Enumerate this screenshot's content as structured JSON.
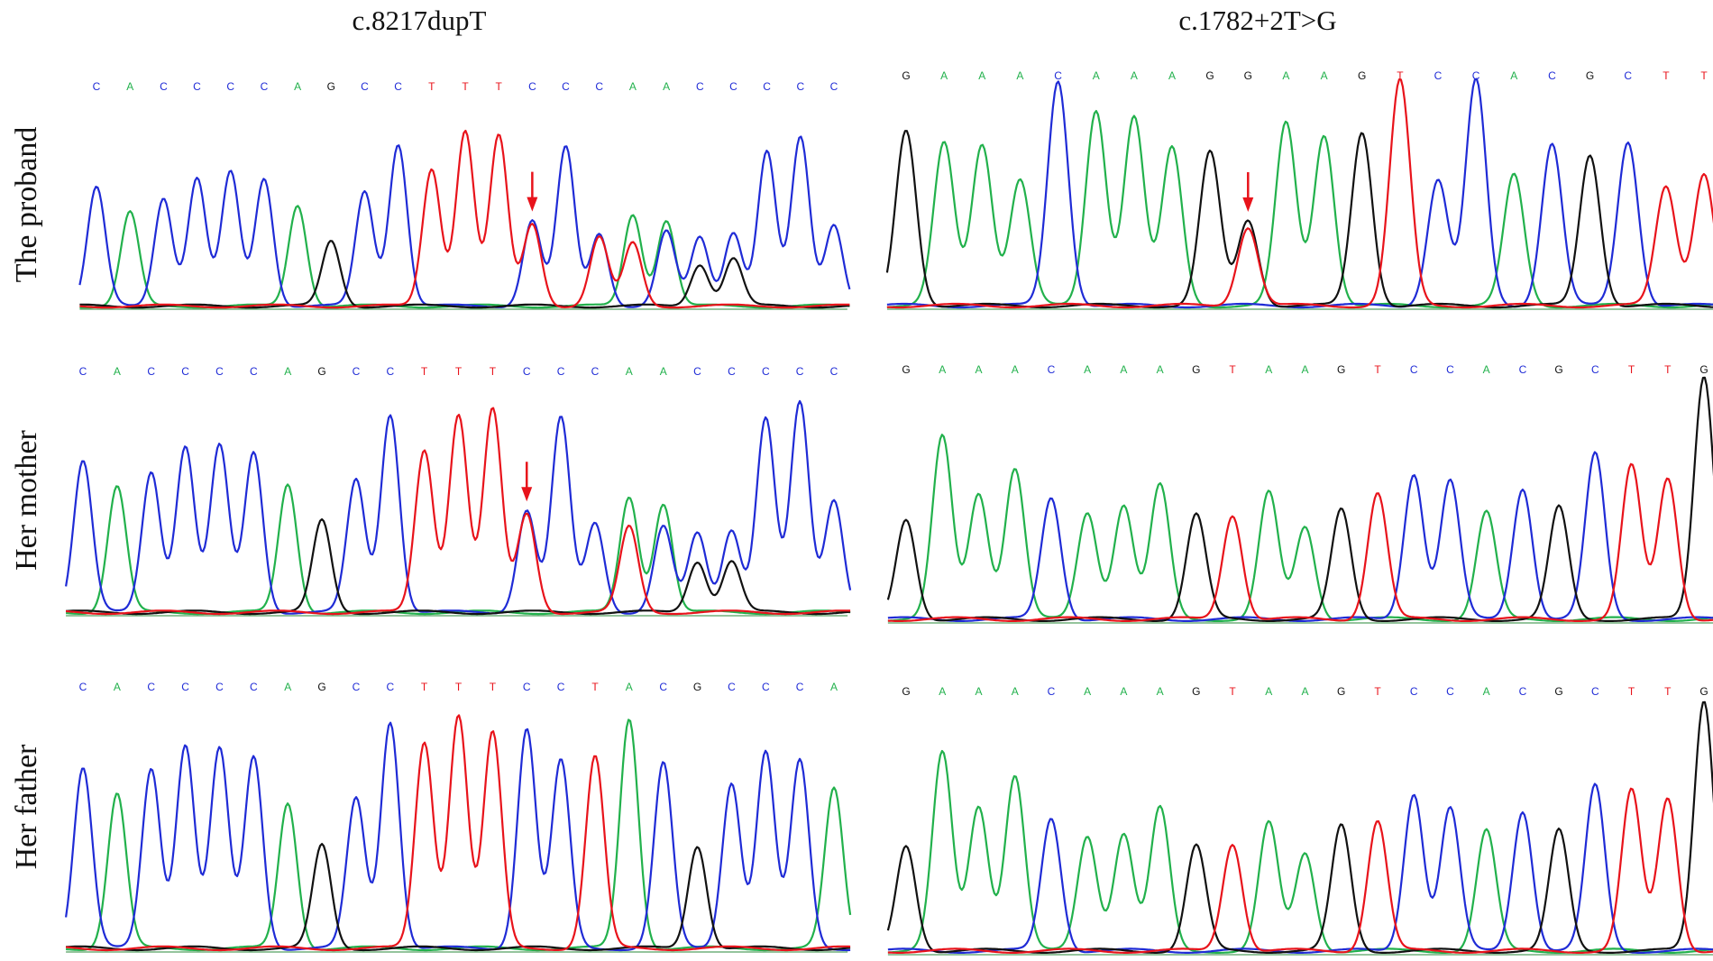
{
  "colors": {
    "A": "#22b14c",
    "C": "#1f2bd6",
    "G": "#111111",
    "T": "#e8131b",
    "arrow": "#e8131b"
  },
  "chart_data": {
    "type": "line",
    "columns": [
      "c.8217dupT",
      "c.1782+2T>G"
    ],
    "rows": [
      "The proband",
      "Her mother",
      "Her father"
    ],
    "panels": [
      {
        "row": "The proband",
        "column": "c.8217dupT",
        "sequence": [
          "C",
          "A",
          "C",
          "C",
          "C",
          "C",
          "A",
          "G",
          "C",
          "C",
          "T",
          "T",
          "T",
          "C",
          "C",
          "C",
          "A",
          "A",
          "C",
          "C",
          "C",
          "C",
          "C"
        ],
        "peaks": [
          {
            "base": "C",
            "h": 0.62
          },
          {
            "base": "A",
            "h": 0.49
          },
          {
            "base": "C",
            "h": 0.57
          },
          {
            "base": "C",
            "h": 0.67
          },
          {
            "base": "C",
            "h": 0.7
          },
          {
            "base": "C",
            "h": 0.67
          },
          {
            "base": "A",
            "h": 0.53
          },
          {
            "base": "G",
            "h": 0.34
          },
          {
            "base": "C",
            "h": 0.6
          },
          {
            "base": "C",
            "h": 0.85
          },
          {
            "base": "T",
            "h": 0.72
          },
          {
            "base": "T",
            "h": 0.92
          },
          {
            "base": "T",
            "h": 0.89
          },
          {
            "base": "C",
            "h": 0.45,
            "sec": "T",
            "sh": 0.43
          },
          {
            "base": "C",
            "h": 0.83
          },
          {
            "base": "C",
            "h": 0.38,
            "sec": "T",
            "sh": 0.36
          },
          {
            "base": "A",
            "h": 0.48,
            "sec": "T",
            "sh": 0.33
          },
          {
            "base": "A",
            "h": 0.45,
            "sec": "C",
            "sh": 0.39
          },
          {
            "base": "C",
            "h": 0.36,
            "sec": "G",
            "sh": 0.22
          },
          {
            "base": "C",
            "h": 0.39,
            "sec": "G",
            "sh": 0.25
          },
          {
            "base": "C",
            "h": 0.81
          },
          {
            "base": "C",
            "h": 0.88
          },
          {
            "base": "C",
            "h": 0.43
          }
        ],
        "arrow_at": 13
      },
      {
        "row": "The proband",
        "column": "c.1782+2T>G",
        "sequence": [
          "G",
          "A",
          "A",
          "A",
          "C",
          "A",
          "A",
          "A",
          "G",
          "G",
          "A",
          "A",
          "G",
          "T",
          "C",
          "C",
          "A",
          "C",
          "G",
          "C",
          "T",
          "T"
        ],
        "peaks": [
          {
            "base": "G",
            "h": 0.78
          },
          {
            "base": "A",
            "h": 0.72
          },
          {
            "base": "A",
            "h": 0.72
          },
          {
            "base": "A",
            "h": 0.56
          },
          {
            "base": "C",
            "h": 1.0
          },
          {
            "base": "A",
            "h": 0.87
          },
          {
            "base": "A",
            "h": 0.84
          },
          {
            "base": "A",
            "h": 0.7
          },
          {
            "base": "G",
            "h": 0.68
          },
          {
            "base": "G",
            "h": 0.38,
            "sec": "T",
            "sh": 0.35
          },
          {
            "base": "A",
            "h": 0.81
          },
          {
            "base": "A",
            "h": 0.76
          },
          {
            "base": "G",
            "h": 0.77
          },
          {
            "base": "T",
            "h": 1.0
          },
          {
            "base": "C",
            "h": 0.56
          },
          {
            "base": "C",
            "h": 1.0
          },
          {
            "base": "A",
            "h": 0.58
          },
          {
            "base": "C",
            "h": 0.72
          },
          {
            "base": "G",
            "h": 0.67
          },
          {
            "base": "C",
            "h": 0.73
          },
          {
            "base": "T",
            "h": 0.53
          },
          {
            "base": "T",
            "h": 0.59
          }
        ],
        "arrow_at": 9
      },
      {
        "row": "Her mother",
        "column": "c.8217dupT",
        "sequence": [
          "C",
          "A",
          "C",
          "C",
          "C",
          "C",
          "A",
          "G",
          "C",
          "C",
          "T",
          "T",
          "T",
          "C",
          "C",
          "C",
          "A",
          "A",
          "C",
          "C",
          "C",
          "C",
          "C"
        ],
        "peaks": [
          {
            "base": "C",
            "h": 0.71
          },
          {
            "base": "A",
            "h": 0.59
          },
          {
            "base": "C",
            "h": 0.66
          },
          {
            "base": "C",
            "h": 0.78
          },
          {
            "base": "C",
            "h": 0.78
          },
          {
            "base": "C",
            "h": 0.75
          },
          {
            "base": "A",
            "h": 0.6
          },
          {
            "base": "G",
            "h": 0.43
          },
          {
            "base": "C",
            "h": 0.62
          },
          {
            "base": "C",
            "h": 0.93
          },
          {
            "base": "T",
            "h": 0.76
          },
          {
            "base": "T",
            "h": 0.93
          },
          {
            "base": "T",
            "h": 0.95
          },
          {
            "base": "C",
            "h": 0.48,
            "sec": "T",
            "sh": 0.46
          },
          {
            "base": "C",
            "h": 0.91
          },
          {
            "base": "C",
            "h": 0.42
          },
          {
            "base": "A",
            "h": 0.54,
            "sec": "T",
            "sh": 0.4
          },
          {
            "base": "A",
            "h": 0.51,
            "sec": "C",
            "sh": 0.4
          },
          {
            "base": "C",
            "h": 0.37,
            "sec": "G",
            "sh": 0.24
          },
          {
            "base": "C",
            "h": 0.39,
            "sec": "G",
            "sh": 0.24
          },
          {
            "base": "C",
            "h": 0.91
          },
          {
            "base": "C",
            "h": 0.98
          },
          {
            "base": "C",
            "h": 0.53
          }
        ],
        "arrow_at": 13
      },
      {
        "row": "Her mother",
        "column": "c.1782+2T>G",
        "sequence": [
          "G",
          "A",
          "A",
          "A",
          "C",
          "A",
          "A",
          "A",
          "G",
          "T",
          "A",
          "A",
          "G",
          "T",
          "C",
          "C",
          "A",
          "C",
          "G",
          "C",
          "T",
          "T",
          "G"
        ],
        "peaks": [
          {
            "base": "G",
            "h": 0.41
          },
          {
            "base": "A",
            "h": 0.75
          },
          {
            "base": "A",
            "h": 0.52
          },
          {
            "base": "A",
            "h": 0.62
          },
          {
            "base": "C",
            "h": 0.5
          },
          {
            "base": "A",
            "h": 0.44
          },
          {
            "base": "A",
            "h": 0.47
          },
          {
            "base": "A",
            "h": 0.55
          },
          {
            "base": "G",
            "h": 0.43
          },
          {
            "base": "T",
            "h": 0.43
          },
          {
            "base": "A",
            "h": 0.52
          },
          {
            "base": "A",
            "h": 0.38
          },
          {
            "base": "G",
            "h": 0.45
          },
          {
            "base": "T",
            "h": 0.52
          },
          {
            "base": "C",
            "h": 0.6
          },
          {
            "base": "C",
            "h": 0.57
          },
          {
            "base": "A",
            "h": 0.44
          },
          {
            "base": "C",
            "h": 0.54
          },
          {
            "base": "G",
            "h": 0.46
          },
          {
            "base": "C",
            "h": 0.68
          },
          {
            "base": "T",
            "h": 0.63
          },
          {
            "base": "T",
            "h": 0.58
          },
          {
            "base": "G",
            "h": 1.0
          }
        ],
        "arrow_at": null
      },
      {
        "row": "Her father",
        "column": "c.8217dupT",
        "sequence": [
          "C",
          "A",
          "C",
          "C",
          "C",
          "C",
          "A",
          "G",
          "C",
          "C",
          "T",
          "T",
          "T",
          "C",
          "C",
          "T",
          "A",
          "C",
          "G",
          "C",
          "C",
          "C",
          "A"
        ],
        "peaks": [
          {
            "base": "C",
            "h": 0.77
          },
          {
            "base": "A",
            "h": 0.66
          },
          {
            "base": "C",
            "h": 0.77
          },
          {
            "base": "C",
            "h": 0.87
          },
          {
            "base": "C",
            "h": 0.85
          },
          {
            "base": "C",
            "h": 0.82
          },
          {
            "base": "A",
            "h": 0.62
          },
          {
            "base": "G",
            "h": 0.44
          },
          {
            "base": "C",
            "h": 0.64
          },
          {
            "base": "C",
            "h": 0.97
          },
          {
            "base": "T",
            "h": 0.88
          },
          {
            "base": "T",
            "h": 1.0
          },
          {
            "base": "T",
            "h": 0.92
          },
          {
            "base": "C",
            "h": 0.94
          },
          {
            "base": "C",
            "h": 0.8
          },
          {
            "base": "T",
            "h": 0.82
          },
          {
            "base": "A",
            "h": 0.98
          },
          {
            "base": "C",
            "h": 0.79
          },
          {
            "base": "G",
            "h": 0.44
          },
          {
            "base": "C",
            "h": 0.71
          },
          {
            "base": "C",
            "h": 0.84
          },
          {
            "base": "C",
            "h": 0.8
          },
          {
            "base": "A",
            "h": 0.68
          }
        ],
        "arrow_at": null
      },
      {
        "row": "Her father",
        "column": "c.1782+2T>G",
        "sequence": [
          "G",
          "A",
          "A",
          "A",
          "C",
          "A",
          "A",
          "A",
          "G",
          "T",
          "A",
          "A",
          "G",
          "T",
          "C",
          "C",
          "A",
          "C",
          "G",
          "C",
          "T",
          "T",
          "G"
        ],
        "peaks": [
          {
            "base": "G",
            "h": 0.42
          },
          {
            "base": "A",
            "h": 0.79
          },
          {
            "base": "A",
            "h": 0.58
          },
          {
            "base": "A",
            "h": 0.7
          },
          {
            "base": "C",
            "h": 0.53
          },
          {
            "base": "A",
            "h": 0.46
          },
          {
            "base": "A",
            "h": 0.47
          },
          {
            "base": "A",
            "h": 0.57
          },
          {
            "base": "G",
            "h": 0.42
          },
          {
            "base": "T",
            "h": 0.43
          },
          {
            "base": "A",
            "h": 0.51
          },
          {
            "base": "A",
            "h": 0.39
          },
          {
            "base": "G",
            "h": 0.5
          },
          {
            "base": "T",
            "h": 0.52
          },
          {
            "base": "C",
            "h": 0.63
          },
          {
            "base": "C",
            "h": 0.57
          },
          {
            "base": "A",
            "h": 0.48
          },
          {
            "base": "C",
            "h": 0.56
          },
          {
            "base": "G",
            "h": 0.48
          },
          {
            "base": "C",
            "h": 0.66
          },
          {
            "base": "T",
            "h": 0.64
          },
          {
            "base": "T",
            "h": 0.61
          },
          {
            "base": "G",
            "h": 1.0
          }
        ],
        "arrow_at": null
      }
    ]
  }
}
